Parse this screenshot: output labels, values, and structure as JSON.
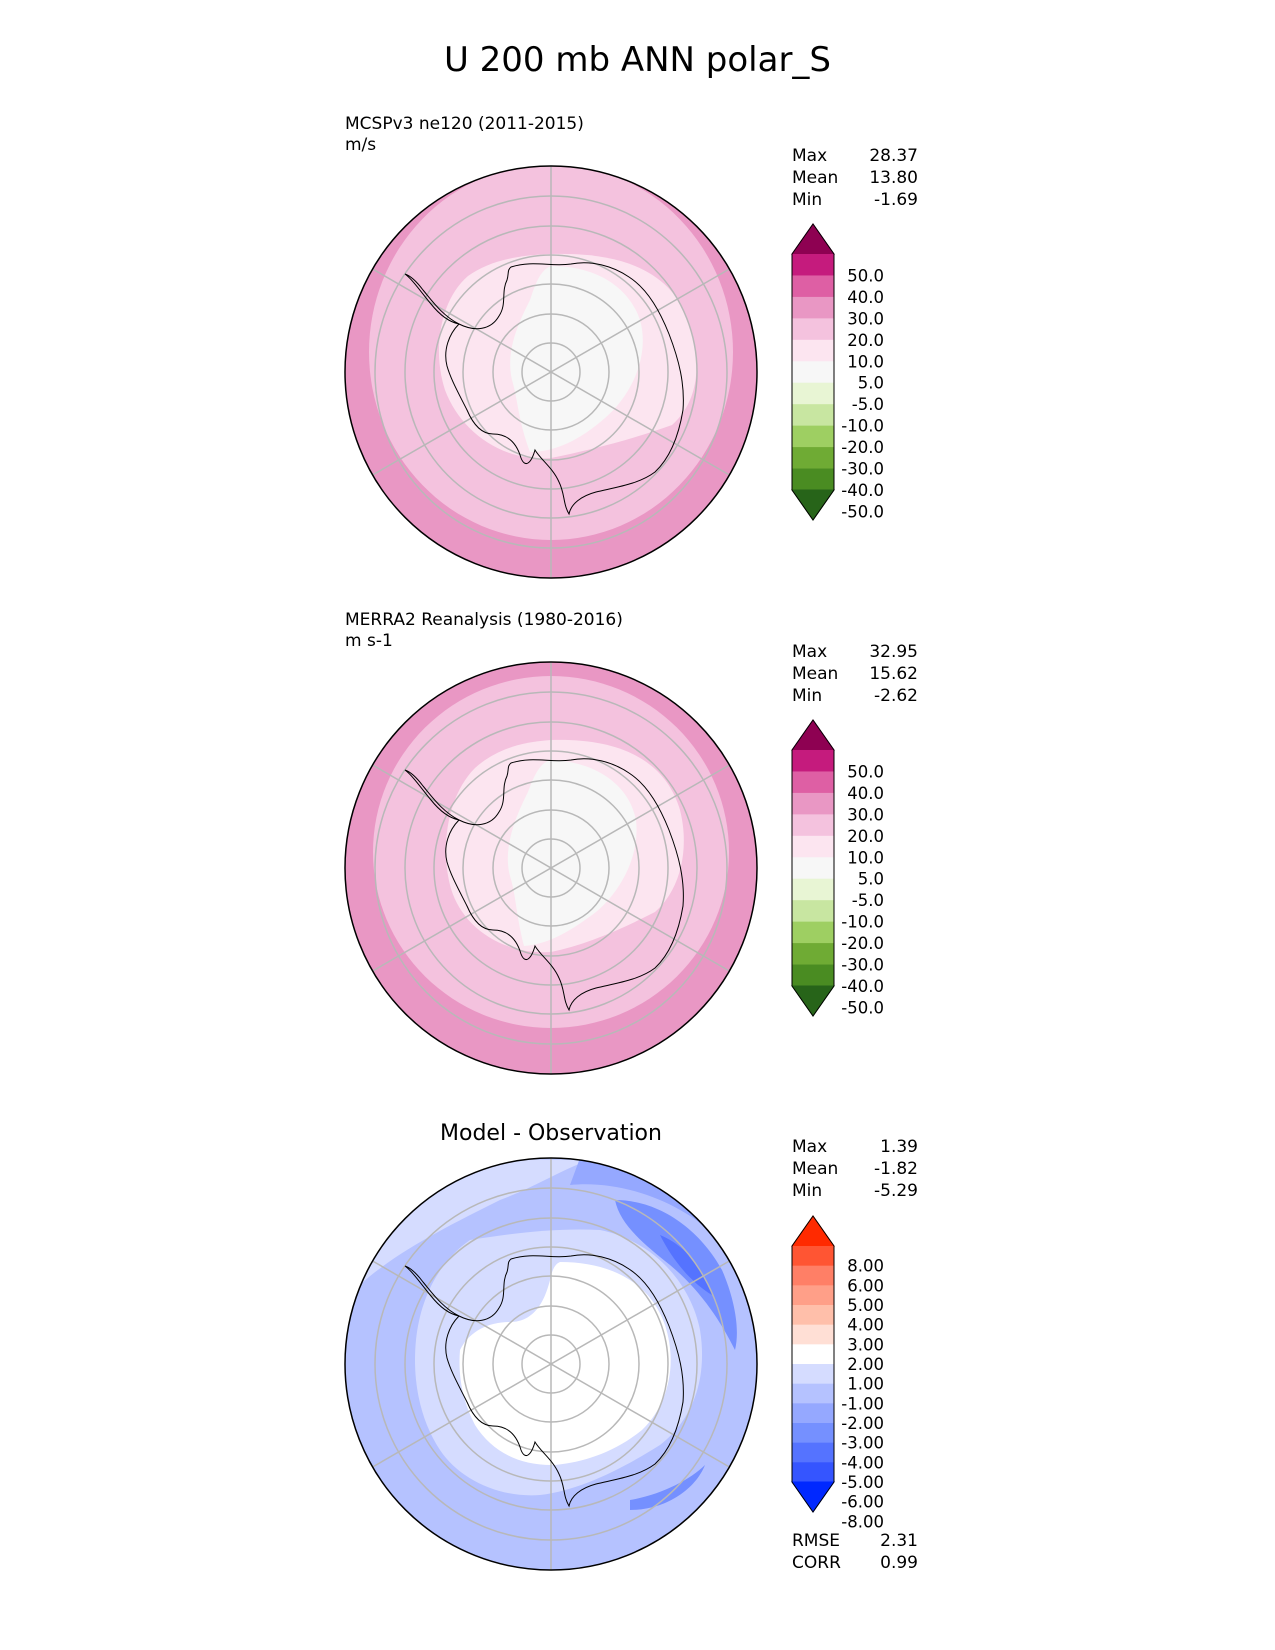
{
  "title": "U 200 mb ANN polar_S",
  "panels": [
    {
      "id": "test",
      "label": "MCSPv3 ne120 (2011-2015)",
      "units": "m/s",
      "stats": [
        {
          "name": "Max",
          "value": "28.37"
        },
        {
          "name": "Mean",
          "value": "13.80"
        },
        {
          "name": "Min",
          "value": "-1.69"
        }
      ],
      "colorbar": {
        "colors": [
          "#8e0152",
          "#c51b7d",
          "#de5fa4",
          "#e997c4",
          "#f4c2de",
          "#fce5f0",
          "#f7f7f7",
          "#e8f5d4",
          "#c8e6a1",
          "#9ecf62",
          "#6fab34",
          "#4a8c22",
          "#276419"
        ],
        "ticks": [
          "50.0",
          "40.0",
          "30.0",
          "20.0",
          "10.0",
          "5.0",
          "-5.0",
          "-10.0",
          "-20.0",
          "-30.0",
          "-40.0",
          "-50.0"
        ]
      }
    },
    {
      "id": "ref",
      "label": "MERRA2 Reanalysis (1980-2016)",
      "units": "m s-1",
      "stats": [
        {
          "name": "Max",
          "value": "32.95"
        },
        {
          "name": "Mean",
          "value": "15.62"
        },
        {
          "name": "Min",
          "value": "-2.62"
        }
      ],
      "colorbar": {
        "colors": [
          "#8e0152",
          "#c51b7d",
          "#de5fa4",
          "#e997c4",
          "#f4c2de",
          "#fce5f0",
          "#f7f7f7",
          "#e8f5d4",
          "#c8e6a1",
          "#9ecf62",
          "#6fab34",
          "#4a8c22",
          "#276419"
        ],
        "ticks": [
          "50.0",
          "40.0",
          "30.0",
          "20.0",
          "10.0",
          "5.0",
          "-5.0",
          "-10.0",
          "-20.0",
          "-30.0",
          "-40.0",
          "-50.0"
        ]
      }
    },
    {
      "id": "diff",
      "label": "Model - Observation",
      "stats": [
        {
          "name": "Max",
          "value": "1.39"
        },
        {
          "name": "Mean",
          "value": "-1.82"
        },
        {
          "name": "Min",
          "value": "-5.29"
        }
      ],
      "metrics": [
        {
          "name": "RMSE",
          "value": "2.31"
        },
        {
          "name": "CORR",
          "value": "0.99"
        }
      ],
      "colorbar": {
        "colors": [
          "#ff2a00",
          "#ff5533",
          "#ff7f66",
          "#ff9f88",
          "#ffbfaa",
          "#ffdfd5",
          "#ffffff",
          "#d5dcff",
          "#b5c2ff",
          "#95a8ff",
          "#7590ff",
          "#5573ff",
          "#3555ff",
          "#0028ff"
        ],
        "ticks": [
          "8.00",
          "6.00",
          "5.00",
          "4.00",
          "3.00",
          "2.00",
          "1.00",
          "-1.00",
          "-2.00",
          "-3.00",
          "-4.00",
          "-5.00",
          "-6.00",
          "-8.00"
        ]
      }
    }
  ]
}
